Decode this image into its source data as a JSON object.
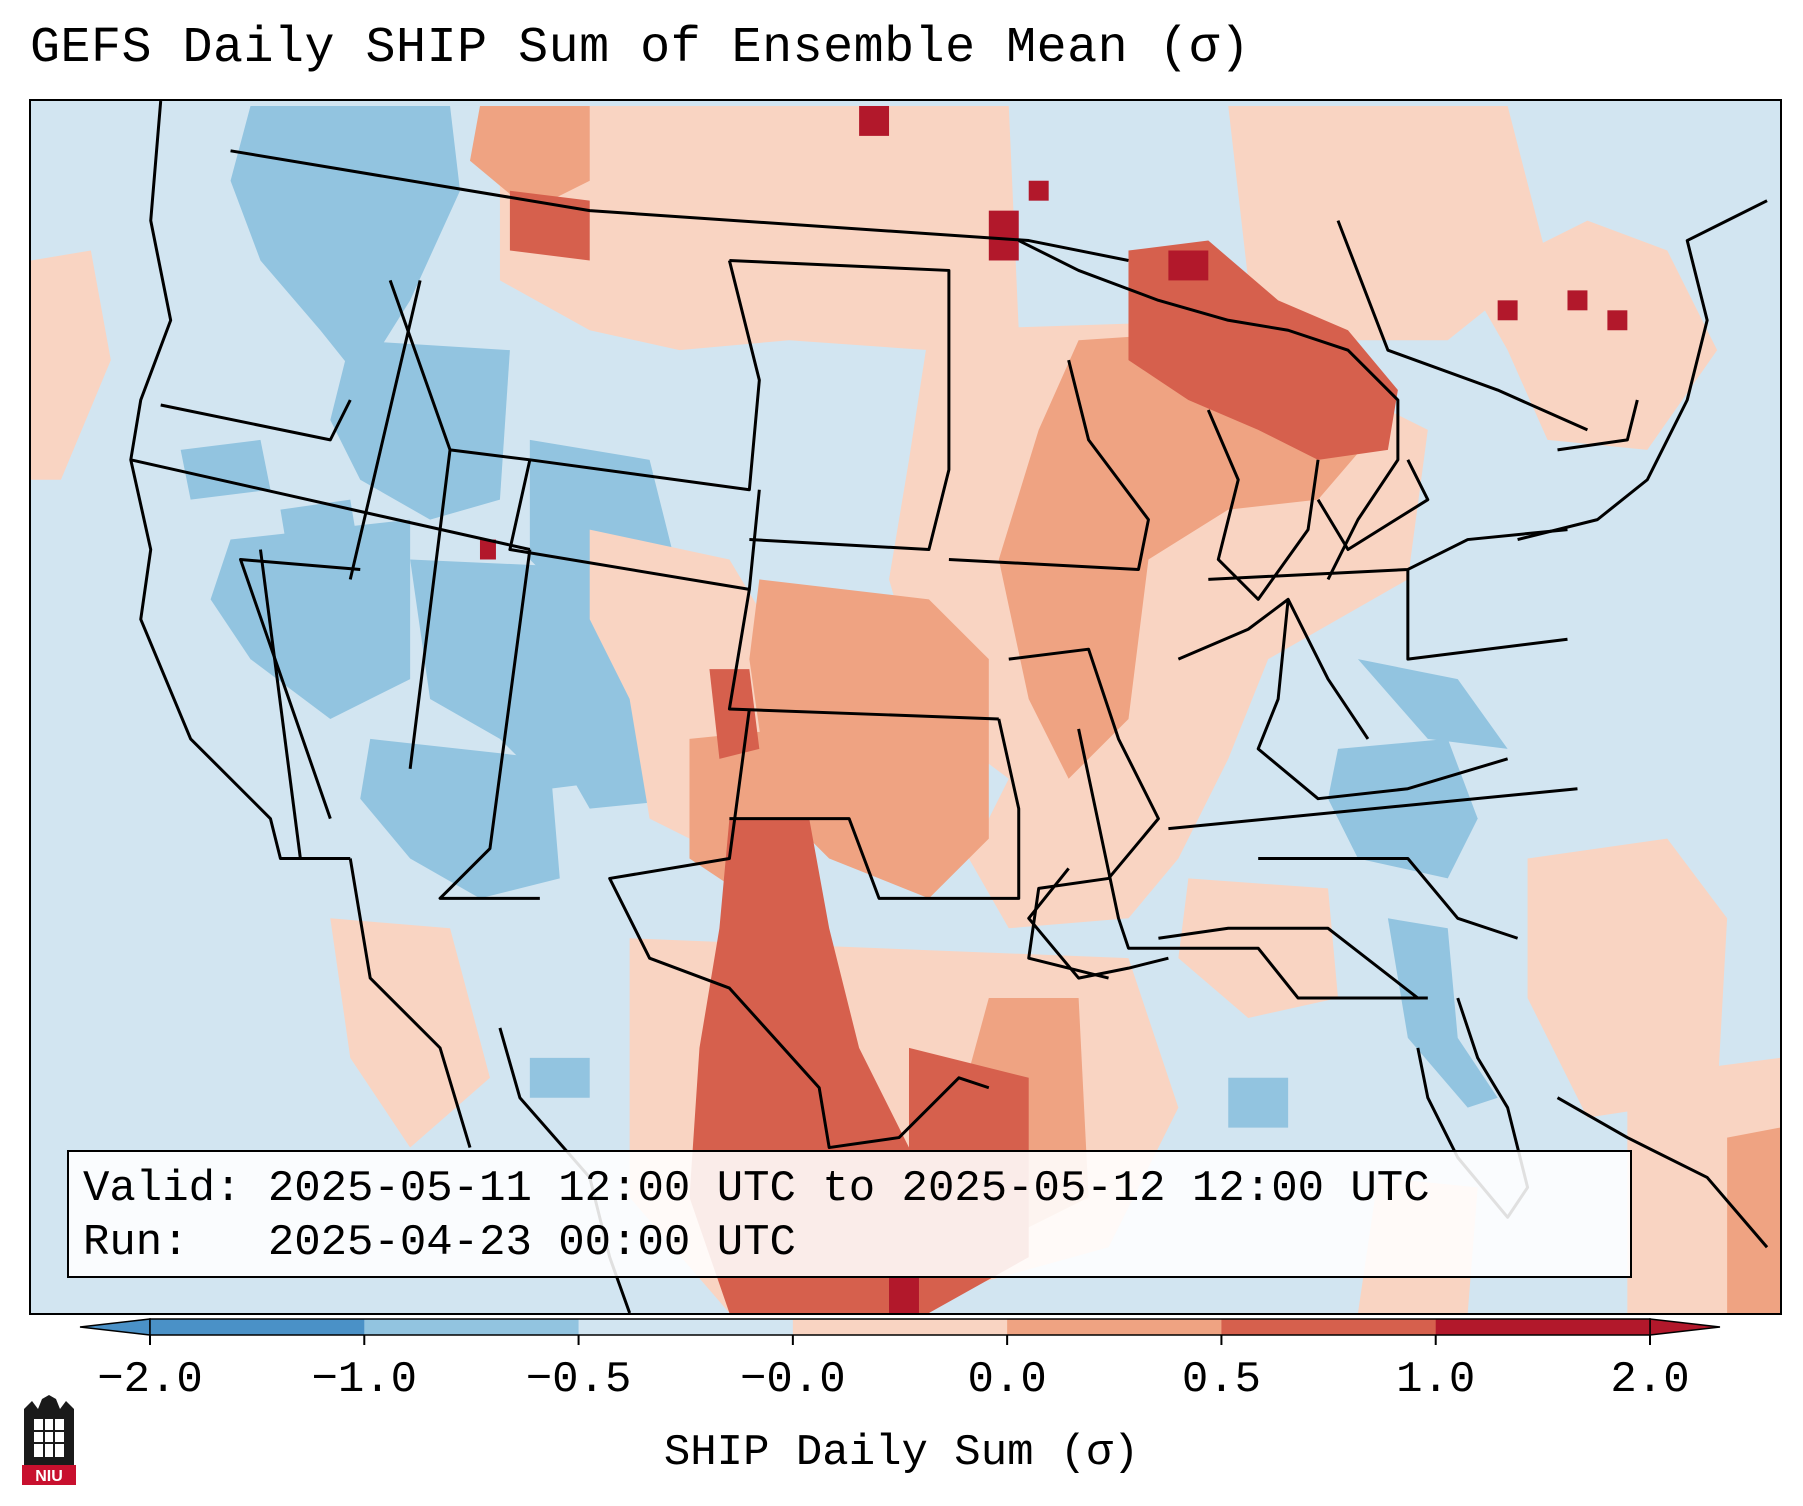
{
  "title": "GEFS Daily SHIP Sum of Ensemble Mean (σ)",
  "valid_line": "Valid: 2025-05-11 12:00 UTC to 2025-05-12 12:00 UTC",
  "run_line": "Run:   2025-04-23 00:00 UTC",
  "colorbar": {
    "label": "SHIP Daily Sum (σ)",
    "ticks": [
      "−2.0",
      "−1.0",
      "−0.5",
      "−0.0",
      "0.0",
      "0.5",
      "1.0",
      "2.0"
    ],
    "colors": [
      "#4a91c7",
      "#92c4e0",
      "#d2e5f1",
      "#f9d4c2",
      "#efa382",
      "#d6604d",
      "#b2182b"
    ]
  },
  "logo": {
    "text": "NIU",
    "icon": "niu-castle-logo"
  },
  "map": {
    "projection": "lambert-conformal",
    "region": "contiguous-united-states",
    "overlay": [
      "state-borders",
      "coastlines",
      "lakes"
    ]
  }
}
